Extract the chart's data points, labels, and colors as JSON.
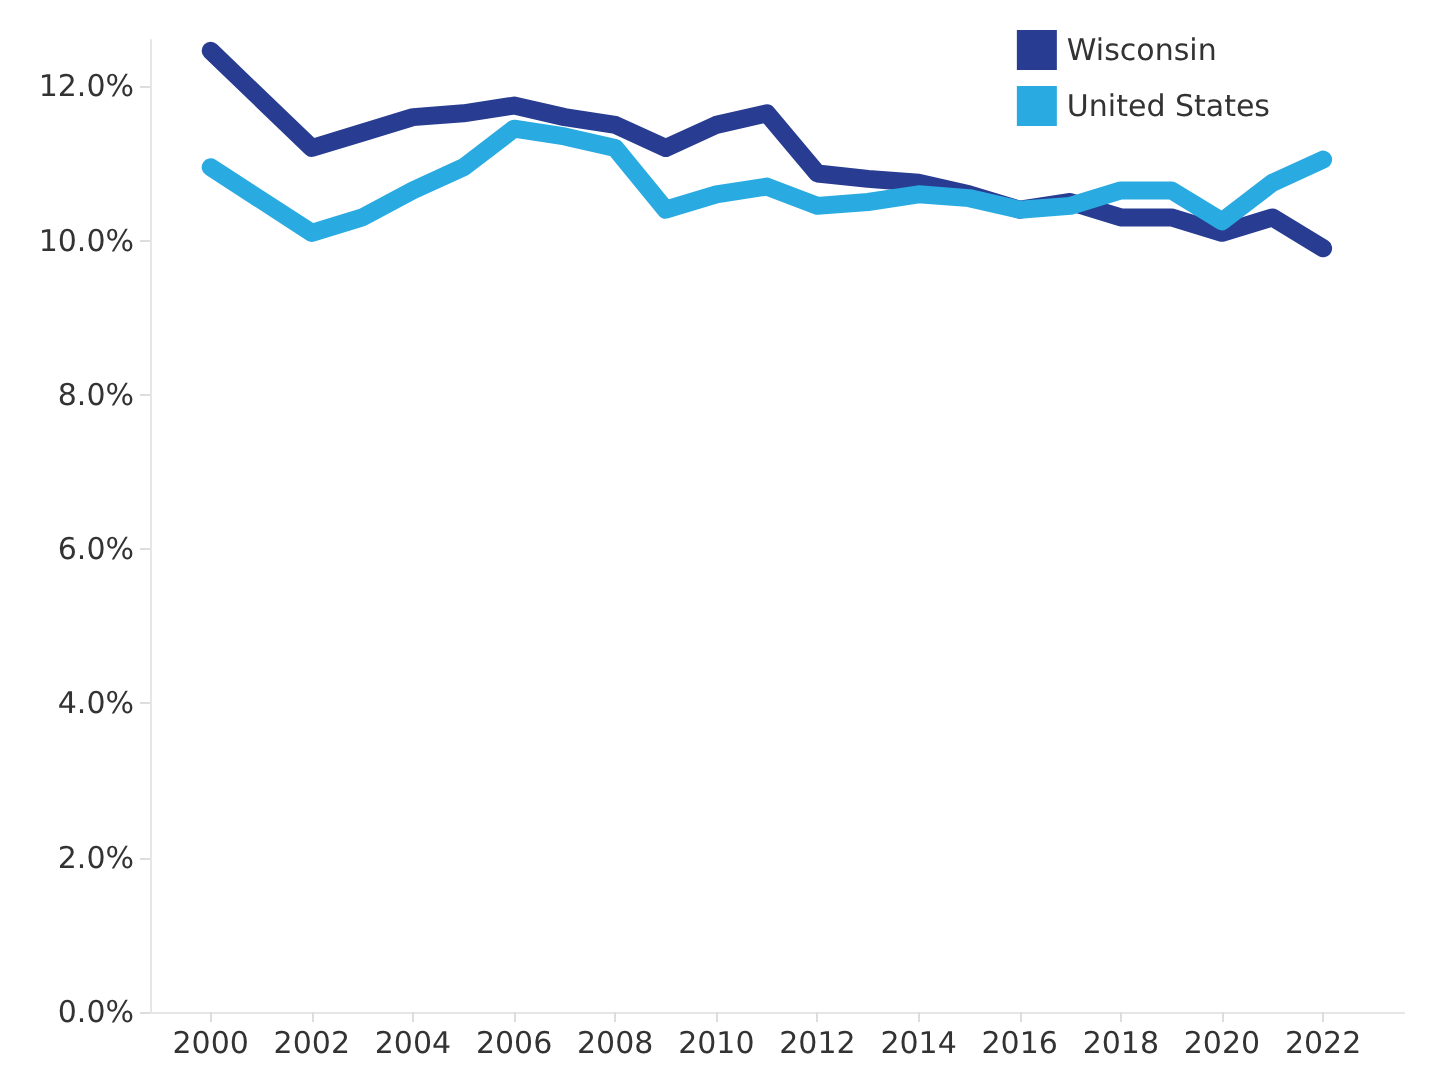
{
  "chart_data": {
    "type": "line",
    "x": [
      2000,
      2002,
      2003,
      2004,
      2005,
      2006,
      2007,
      2008,
      2009,
      2010,
      2011,
      2012,
      2013,
      2014,
      2015,
      2016,
      2017,
      2018,
      2019,
      2020,
      2021,
      2022
    ],
    "series": [
      {
        "name": "Wisconsin",
        "color": "#283c91",
        "values": [
          12.46,
          11.2,
          11.4,
          11.6,
          11.65,
          11.75,
          11.6,
          11.5,
          11.2,
          11.5,
          11.65,
          10.87,
          10.8,
          10.75,
          10.6,
          10.4,
          10.5,
          10.3,
          10.3,
          10.1,
          10.3,
          9.9
        ]
      },
      {
        "name": "United States",
        "color": "#29abe2",
        "values": [
          10.95,
          10.1,
          10.3,
          10.65,
          10.95,
          11.45,
          11.35,
          11.2,
          10.4,
          10.6,
          10.7,
          10.45,
          10.5,
          10.6,
          10.55,
          10.4,
          10.45,
          10.65,
          10.65,
          10.25,
          10.75,
          11.05
        ]
      }
    ],
    "xlim": [
      1998.8,
      2023.6
    ],
    "xticks": [
      2000,
      2002,
      2004,
      2006,
      2008,
      2010,
      2012,
      2014,
      2016,
      2018,
      2020,
      2022
    ],
    "ylim": [
      0,
      12.6
    ],
    "yticks": [
      {
        "value": 0,
        "label": "0.0%"
      },
      {
        "value": 2,
        "label": "2.0%"
      },
      {
        "value": 4,
        "label": "4.0%"
      },
      {
        "value": 6,
        "label": "6.0%"
      },
      {
        "value": 8,
        "label": "8.0%"
      },
      {
        "value": 10,
        "label": "10.0%"
      },
      {
        "value": 12,
        "label": "12.0%"
      }
    ],
    "grid": false,
    "legend": "top right",
    "marker": "none",
    "line_style": "solid"
  }
}
